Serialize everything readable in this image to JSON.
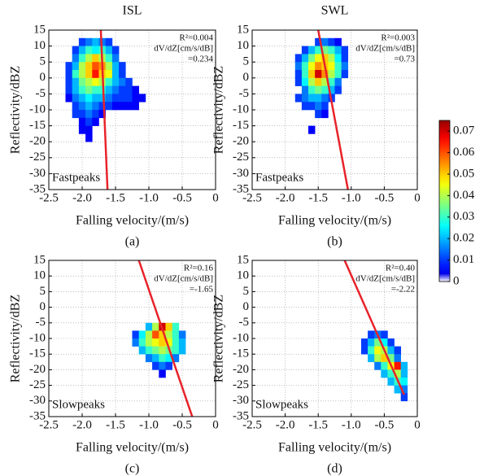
{
  "chart_data": [
    {
      "type": "heatmap",
      "title": "ISL",
      "panel_label": "(a)",
      "annotation": "Fastpeaks",
      "stats": [
        "R²=0.004",
        "dV/dZ[cm/s/dB]",
        "=0.234"
      ],
      "x_label": "Falling velocity/(m/s)",
      "y_label": "Reflectivity/dBZ",
      "xlim": [
        -2.5,
        0
      ],
      "ylim": [
        -35,
        15
      ],
      "xticks": [
        -2.5,
        {
          "value": -2,
          "label": "-2.0"
        },
        -1.5,
        {
          "value": -1,
          "label": "-1.0"
        },
        -0.5,
        0
      ],
      "yticks": [
        -35,
        -30,
        -25,
        -20,
        -15,
        -10,
        -5,
        0,
        5,
        10,
        15
      ],
      "fit_line": {
        "color": "#e8232a",
        "x": [
          -1.72,
          -1.62
        ],
        "y": [
          15,
          -35
        ]
      },
      "rows": [
        {
          "y": 11.25,
          "x": [
            -2.0,
            -1.9,
            -1.8,
            -1.7,
            -1.6
          ],
          "values": [
            0.01,
            0.015,
            0.02,
            0.015,
            0.01
          ]
        },
        {
          "y": 8.75,
          "x": [
            -2.1,
            -2.0,
            -1.9,
            -1.8,
            -1.7,
            -1.6,
            -1.5
          ],
          "values": [
            0.01,
            0.02,
            0.03,
            0.025,
            0.03,
            0.02,
            0.01
          ]
        },
        {
          "y": 6.25,
          "x": [
            -2.1,
            -2.0,
            -1.9,
            -1.8,
            -1.7,
            -1.6,
            -1.5
          ],
          "values": [
            0.015,
            0.03,
            0.04,
            0.05,
            0.04,
            0.03,
            0.015
          ]
        },
        {
          "y": 3.75,
          "x": [
            -2.2,
            -2.1,
            -2.0,
            -1.9,
            -1.8,
            -1.7,
            -1.6,
            -1.5,
            -1.4
          ],
          "values": [
            0.01,
            0.02,
            0.04,
            0.05,
            0.06,
            0.055,
            0.04,
            0.02,
            0.01
          ]
        },
        {
          "y": 1.25,
          "x": [
            -2.2,
            -2.1,
            -2.0,
            -1.9,
            -1.8,
            -1.7,
            -1.6,
            -1.5,
            -1.4
          ],
          "values": [
            0.01,
            0.03,
            0.04,
            0.05,
            0.065,
            0.05,
            0.045,
            0.02,
            0.01
          ]
        },
        {
          "y": -1.25,
          "x": [
            -2.2,
            -2.1,
            -2.0,
            -1.9,
            -1.8,
            -1.7,
            -1.6,
            -1.5,
            -1.4,
            -1.3
          ],
          "values": [
            0.01,
            0.02,
            0.035,
            0.04,
            0.045,
            0.04,
            0.03,
            0.02,
            0.015,
            0.01
          ]
        },
        {
          "y": -3.75,
          "x": [
            -2.2,
            -2.1,
            -2.0,
            -1.9,
            -1.8,
            -1.7,
            -1.6,
            -1.5,
            -1.4,
            -1.3,
            -1.2
          ],
          "values": [
            0.01,
            0.02,
            0.03,
            0.035,
            0.03,
            0.03,
            0.02,
            0.015,
            0.01,
            0.01,
            0.005
          ]
        },
        {
          "y": -6.25,
          "x": [
            -2.2,
            -2.1,
            -2.0,
            -1.9,
            -1.8,
            -1.7,
            -1.6,
            -1.5,
            -1.4,
            -1.3,
            -1.2,
            -1.1
          ],
          "values": [
            0.005,
            0.015,
            0.02,
            0.025,
            0.02,
            0.02,
            0.015,
            0.01,
            0.01,
            0.01,
            0.005,
            0.005
          ]
        },
        {
          "y": -8.75,
          "x": [
            -2.1,
            -2.0,
            -1.9,
            -1.8,
            -1.7,
            -1.6,
            -1.5,
            -1.4,
            -1.3,
            -1.2
          ],
          "values": [
            0.01,
            0.015,
            0.02,
            0.015,
            0.01,
            0.01,
            0.005,
            0.005,
            0.005,
            0.005
          ]
        },
        {
          "y": -11.25,
          "x": [
            -2.1,
            -2.0,
            -1.9,
            -1.8,
            -1.7
          ],
          "values": [
            0.01,
            0.01,
            0.015,
            0.01,
            0.005
          ]
        },
        {
          "y": -13.75,
          "x": [
            -2.0,
            -1.9,
            -1.8
          ],
          "values": [
            0.005,
            0.01,
            0.005
          ]
        },
        {
          "y": -16.25,
          "x": [
            -2.0,
            -1.9
          ],
          "values": [
            0.005,
            0.005
          ]
        },
        {
          "y": -18.75,
          "x": [
            -1.9
          ],
          "values": [
            0.005
          ]
        }
      ]
    },
    {
      "type": "heatmap",
      "title": "SWL",
      "panel_label": "(b)",
      "annotation": "Fastpeaks",
      "stats": [
        "R²=0.003",
        "dV/dZ[cm/s/dB]",
        "=0.73"
      ],
      "x_label": "Falling velocity/(m/s)",
      "y_label": "Reflectivity/dBZ",
      "xlim": [
        -2.5,
        0
      ],
      "ylim": [
        -35,
        15
      ],
      "xticks": [
        -2.5,
        {
          "value": -2,
          "label": "-2.0"
        },
        -1.5,
        {
          "value": -1,
          "label": "-1.0"
        },
        -0.5,
        0
      ],
      "yticks": [
        -35,
        -30,
        -25,
        -20,
        -15,
        -10,
        -5,
        0,
        5,
        10,
        15
      ],
      "fit_line": {
        "color": "#e8232a",
        "x": [
          -1.5,
          -1.05
        ],
        "y": [
          15,
          -35
        ]
      },
      "rows": [
        {
          "y": 11.25,
          "x": [
            -1.5,
            -1.4,
            -1.3,
            -1.2
          ],
          "values": [
            0.01,
            0.015,
            0.01,
            0.005
          ]
        },
        {
          "y": 8.75,
          "x": [
            -1.7,
            -1.6,
            -1.5,
            -1.4,
            -1.3,
            -1.2,
            -1.1
          ],
          "values": [
            0.01,
            0.02,
            0.03,
            0.035,
            0.03,
            0.02,
            0.01
          ]
        },
        {
          "y": 6.25,
          "x": [
            -1.8,
            -1.7,
            -1.6,
            -1.5,
            -1.4,
            -1.3,
            -1.2,
            -1.1
          ],
          "values": [
            0.01,
            0.02,
            0.035,
            0.045,
            0.05,
            0.04,
            0.025,
            0.01
          ]
        },
        {
          "y": 3.75,
          "x": [
            -1.8,
            -1.7,
            -1.6,
            -1.5,
            -1.4,
            -1.3,
            -1.2,
            -1.1
          ],
          "values": [
            0.015,
            0.03,
            0.045,
            0.055,
            0.05,
            0.045,
            0.03,
            0.015
          ]
        },
        {
          "y": 1.25,
          "x": [
            -1.8,
            -1.7,
            -1.6,
            -1.5,
            -1.4,
            -1.3,
            -1.2,
            -1.1
          ],
          "values": [
            0.01,
            0.03,
            0.05,
            0.07,
            0.055,
            0.04,
            0.03,
            0.01
          ]
        },
        {
          "y": -1.25,
          "x": [
            -1.8,
            -1.7,
            -1.6,
            -1.5,
            -1.4,
            -1.3,
            -1.2
          ],
          "values": [
            0.01,
            0.025,
            0.04,
            0.05,
            0.04,
            0.03,
            0.015
          ]
        },
        {
          "y": -3.75,
          "x": [
            -1.7,
            -1.6,
            -1.5,
            -1.4,
            -1.3,
            -1.2
          ],
          "values": [
            0.015,
            0.03,
            0.035,
            0.03,
            0.02,
            0.01
          ]
        },
        {
          "y": -6.25,
          "x": [
            -1.8,
            -1.7,
            -1.6,
            -1.5,
            -1.4,
            -1.3
          ],
          "values": [
            0.01,
            0.015,
            0.02,
            0.02,
            0.015,
            0.01
          ]
        },
        {
          "y": -8.75,
          "x": [
            -1.7,
            -1.6,
            -1.5,
            -1.4
          ],
          "values": [
            0.01,
            0.01,
            0.015,
            0.01
          ]
        },
        {
          "y": -11.25,
          "x": [
            -1.5,
            -1.4
          ],
          "values": [
            0.01,
            0.005
          ]
        },
        {
          "y": -16.25,
          "x": [
            -1.6
          ],
          "values": [
            0.005
          ]
        }
      ]
    },
    {
      "type": "heatmap",
      "panel_label": "(c)",
      "annotation": "Slowpeaks",
      "stats": [
        "R²=0.16",
        "dV/dZ[cm/s/dB]",
        "=-1.65"
      ],
      "x_label": "Falling velocity/(m/s)",
      "y_label": "Reflectivity/dBZ",
      "xlim": [
        -2.5,
        0
      ],
      "ylim": [
        -35,
        15
      ],
      "xticks": [
        -2.5,
        {
          "value": -2,
          "label": "-2.0"
        },
        -1.5,
        {
          "value": -1,
          "label": "-1.0"
        },
        -0.5,
        0
      ],
      "yticks": [
        -35,
        -30,
        -25,
        -20,
        -15,
        -10,
        -5,
        0,
        5,
        10,
        15
      ],
      "fit_line": {
        "color": "#e8232a",
        "x": [
          -1.15,
          -0.35
        ],
        "y": [
          15,
          -35
        ]
      },
      "rows": [
        {
          "y": -6.25,
          "x": [
            -1.0,
            -0.9,
            -0.8,
            -0.7,
            -0.6
          ],
          "values": [
            0.02,
            0.04,
            0.07,
            0.05,
            0.03
          ]
        },
        {
          "y": -8.75,
          "x": [
            -1.2,
            -1.1,
            -1.0,
            -0.9,
            -0.8,
            -0.7,
            -0.6,
            -0.5
          ],
          "values": [
            0.01,
            0.025,
            0.04,
            0.06,
            0.05,
            0.04,
            0.03,
            0.015
          ]
        },
        {
          "y": -11.25,
          "x": [
            -1.2,
            -1.1,
            -1.0,
            -0.9,
            -0.8,
            -0.7,
            -0.6,
            -0.5
          ],
          "values": [
            0.015,
            0.03,
            0.04,
            0.045,
            0.05,
            0.045,
            0.03,
            0.02
          ]
        },
        {
          "y": -13.75,
          "x": [
            -1.1,
            -1.0,
            -0.9,
            -0.8,
            -0.7,
            -0.6,
            -0.5
          ],
          "values": [
            0.02,
            0.03,
            0.035,
            0.04,
            0.035,
            0.03,
            0.02
          ]
        },
        {
          "y": -16.25,
          "x": [
            -1.0,
            -0.9,
            -0.8,
            -0.7,
            -0.6
          ],
          "values": [
            0.015,
            0.02,
            0.03,
            0.025,
            0.015
          ]
        },
        {
          "y": -18.75,
          "x": [
            -0.9,
            -0.8,
            -0.7
          ],
          "values": [
            0.01,
            0.015,
            0.01
          ]
        },
        {
          "y": -21.25,
          "x": [
            -0.8
          ],
          "values": [
            0.005
          ]
        }
      ]
    },
    {
      "type": "heatmap",
      "panel_label": "(d)",
      "annotation": "Slowpeaks",
      "stats": [
        "R²=0.40",
        "dV/dZ[cm/s/dB]",
        "=-2.22"
      ],
      "x_label": "Falling velocity/(m/s)",
      "y_label": "Reflectivity/dBZ",
      "xlim": [
        -2.5,
        0
      ],
      "ylim": [
        -35,
        15
      ],
      "xticks": [
        -2.5,
        {
          "value": -2,
          "label": "-2.0"
        },
        -1.5,
        {
          "value": -1,
          "label": "-1.0"
        },
        -0.5,
        0
      ],
      "yticks": [
        -35,
        -30,
        -25,
        -20,
        -15,
        -10,
        -5,
        0,
        5,
        10,
        15
      ],
      "fit_line": {
        "color": "#e8232a",
        "x": [
          -1.1,
          -0.2
        ],
        "y": [
          15,
          -28
        ]
      },
      "rows": [
        {
          "y": -8.75,
          "x": [
            -0.7,
            -0.6,
            -0.5
          ],
          "values": [
            0.01,
            0.015,
            0.01
          ]
        },
        {
          "y": -11.25,
          "x": [
            -0.8,
            -0.7,
            -0.6,
            -0.5,
            -0.4
          ],
          "values": [
            0.01,
            0.02,
            0.035,
            0.025,
            0.01
          ]
        },
        {
          "y": -13.75,
          "x": [
            -0.8,
            -0.7,
            -0.6,
            -0.5,
            -0.4,
            -0.3
          ],
          "values": [
            0.01,
            0.03,
            0.045,
            0.04,
            0.02,
            0.01
          ]
        },
        {
          "y": -16.25,
          "x": [
            -0.7,
            -0.6,
            -0.5,
            -0.4,
            -0.3
          ],
          "values": [
            0.02,
            0.04,
            0.05,
            0.035,
            0.015
          ]
        },
        {
          "y": -18.75,
          "x": [
            -0.6,
            -0.5,
            -0.4,
            -0.3,
            -0.2
          ],
          "values": [
            0.015,
            0.03,
            0.045,
            0.065,
            0.02
          ]
        },
        {
          "y": -21.25,
          "x": [
            -0.5,
            -0.4,
            -0.3,
            -0.2
          ],
          "values": [
            0.02,
            0.03,
            0.04,
            0.02
          ]
        },
        {
          "y": -23.75,
          "x": [
            -0.4,
            -0.3,
            -0.2
          ],
          "values": [
            0.02,
            0.03,
            0.025
          ]
        },
        {
          "y": -26.25,
          "x": [
            -0.3,
            -0.2
          ],
          "values": [
            0.02,
            0.015
          ]
        },
        {
          "y": -28.75,
          "x": [
            -0.2
          ],
          "values": [
            0.01
          ]
        }
      ]
    }
  ],
  "colorbar": {
    "lim": [
      0,
      0.075
    ],
    "ticks": [
      0,
      0.01,
      0.02,
      0.03,
      0.04,
      0.05,
      0.06,
      0.07
    ]
  }
}
